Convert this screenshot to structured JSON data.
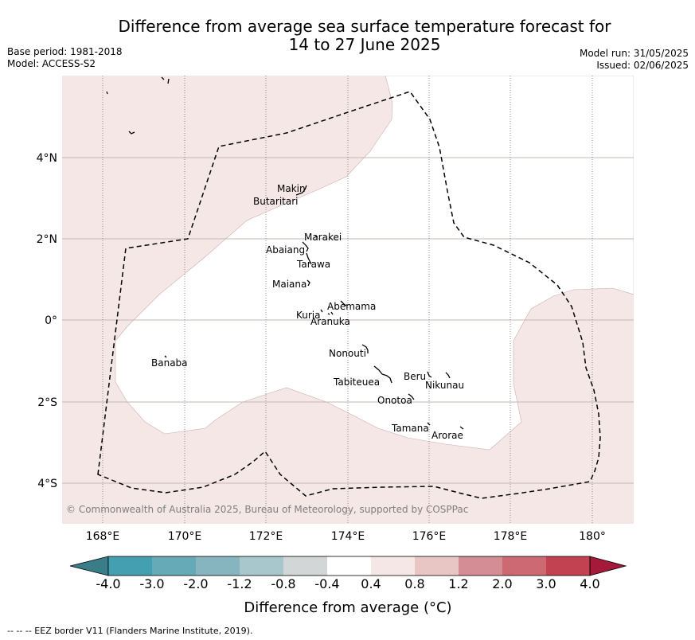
{
  "header": {
    "title_line1": "Difference from average sea surface temperature forecast for",
    "title_line2": "14 to 27 June 2025",
    "base_period": "Base period: 1981-2018",
    "model": "Model: ACCESS-S2",
    "model_run": "Model run: 31/05/2025",
    "issued": "Issued: 02/06/2025"
  },
  "map": {
    "lon_labels": [
      "168°E",
      "170°E",
      "172°E",
      "174°E",
      "176°E",
      "178°E",
      "180°"
    ],
    "lat_labels": [
      "4°N",
      "2°N",
      "0°",
      "2°S",
      "4°S"
    ],
    "copyright": "© Commonwealth of Australia 2025, Bureau of Meteorology, supported by COSPPac",
    "islands": [
      "Makin",
      "Butaritari",
      "Marakei",
      "Abaiang",
      "Tarawa",
      "Maiana",
      "Abemama",
      "Kuria",
      "Aranuka",
      "Banaba",
      "Nonouti",
      "Beru",
      "Nikunau",
      "Tabiteuea",
      "Onotoa",
      "Tamana",
      "Arorae"
    ]
  },
  "colorbar": {
    "tick_labels": [
      "-4.0",
      "-3.0",
      "-2.0",
      "-1.2",
      "-0.8",
      "-0.4",
      "0.4",
      "0.8",
      "1.2",
      "2.0",
      "3.0",
      "4.0"
    ],
    "colors": [
      "#3a7d89",
      "#44a0b0",
      "#66aab8",
      "#86b5c0",
      "#a7c7cc",
      "#d2d6d6",
      "#ffffff",
      "#f4e7e6",
      "#e8c6c3",
      "#d58d95",
      "#cd6973",
      "#c34252",
      "#a5193a"
    ],
    "label": "Difference from average (°C)"
  },
  "footnote": "-- -- -- EEZ border V11 (Flanders Marine Institute, 2019)."
}
